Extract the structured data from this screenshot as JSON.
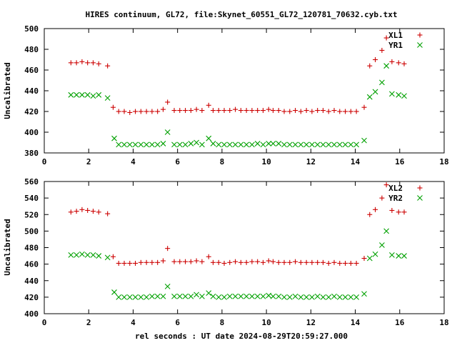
{
  "figure": {
    "title": "HIRES continuum, GL72, file:Skynet_60551_GL72_120781_70632.cyb.txt",
    "xlabel": "rel seconds : UT date 2024-08-29T20:59:27.000"
  },
  "colors": {
    "red_series": "#cc0000",
    "green_series": "#00a000"
  },
  "chart_data": [
    {
      "type": "scatter",
      "ylabel": "Uncalibrated",
      "xlim": [
        0,
        18
      ],
      "ylim": [
        380,
        500
      ],
      "xticks": [
        0,
        2,
        4,
        6,
        8,
        10,
        12,
        14,
        16,
        18
      ],
      "yticks": [
        380,
        400,
        420,
        440,
        460,
        480,
        500
      ],
      "legend_position": "top-right",
      "series": [
        {
          "name": "XL1",
          "marker": "plus",
          "color": "#cc0000",
          "points": [
            [
              1.2,
              467
            ],
            [
              1.45,
              467
            ],
            [
              1.7,
              468
            ],
            [
              1.95,
              467
            ],
            [
              2.2,
              467
            ],
            [
              2.45,
              466
            ],
            [
              2.85,
              464
            ],
            [
              3.1,
              424
            ],
            [
              3.35,
              420
            ],
            [
              3.6,
              420
            ],
            [
              3.85,
              419
            ],
            [
              4.1,
              420
            ],
            [
              4.35,
              420
            ],
            [
              4.6,
              420
            ],
            [
              4.85,
              420
            ],
            [
              5.1,
              420
            ],
            [
              5.35,
              422
            ],
            [
              5.55,
              429
            ],
            [
              5.85,
              421
            ],
            [
              6.1,
              421
            ],
            [
              6.35,
              421
            ],
            [
              6.6,
              421
            ],
            [
              6.85,
              422
            ],
            [
              7.1,
              421
            ],
            [
              7.4,
              426
            ],
            [
              7.6,
              421
            ],
            [
              7.85,
              421
            ],
            [
              8.1,
              421
            ],
            [
              8.35,
              421
            ],
            [
              8.6,
              422
            ],
            [
              8.85,
              421
            ],
            [
              9.1,
              421
            ],
            [
              9.35,
              421
            ],
            [
              9.6,
              421
            ],
            [
              9.85,
              421
            ],
            [
              10.1,
              422
            ],
            [
              10.3,
              421
            ],
            [
              10.55,
              421
            ],
            [
              10.8,
              420
            ],
            [
              11.05,
              420
            ],
            [
              11.3,
              421
            ],
            [
              11.55,
              420
            ],
            [
              11.8,
              421
            ],
            [
              12.05,
              420
            ],
            [
              12.3,
              421
            ],
            [
              12.55,
              421
            ],
            [
              12.8,
              420
            ],
            [
              13.05,
              421
            ],
            [
              13.3,
              420
            ],
            [
              13.55,
              420
            ],
            [
              13.8,
              420
            ],
            [
              14.05,
              420
            ],
            [
              14.4,
              424
            ],
            [
              14.65,
              464
            ],
            [
              14.9,
              470
            ],
            [
              15.2,
              479
            ],
            [
              15.4,
              491
            ],
            [
              15.65,
              468
            ],
            [
              15.95,
              467
            ],
            [
              16.2,
              466
            ]
          ]
        },
        {
          "name": "YR1",
          "marker": "cross",
          "color": "#00a000",
          "points": [
            [
              1.2,
              436
            ],
            [
              1.45,
              436
            ],
            [
              1.7,
              436
            ],
            [
              1.95,
              436
            ],
            [
              2.2,
              435
            ],
            [
              2.45,
              436
            ],
            [
              2.85,
              433
            ],
            [
              3.15,
              394
            ],
            [
              3.35,
              388
            ],
            [
              3.6,
              388
            ],
            [
              3.85,
              388
            ],
            [
              4.1,
              388
            ],
            [
              4.35,
              388
            ],
            [
              4.6,
              388
            ],
            [
              4.85,
              388
            ],
            [
              5.1,
              388
            ],
            [
              5.35,
              389
            ],
            [
              5.55,
              400
            ],
            [
              5.85,
              388
            ],
            [
              6.1,
              388
            ],
            [
              6.35,
              388
            ],
            [
              6.6,
              389
            ],
            [
              6.85,
              390
            ],
            [
              7.1,
              388
            ],
            [
              7.4,
              394
            ],
            [
              7.6,
              389
            ],
            [
              7.85,
              388
            ],
            [
              8.1,
              388
            ],
            [
              8.35,
              388
            ],
            [
              8.6,
              388
            ],
            [
              8.85,
              388
            ],
            [
              9.1,
              388
            ],
            [
              9.35,
              388
            ],
            [
              9.6,
              389
            ],
            [
              9.85,
              388
            ],
            [
              10.1,
              389
            ],
            [
              10.3,
              389
            ],
            [
              10.55,
              389
            ],
            [
              10.8,
              388
            ],
            [
              11.05,
              388
            ],
            [
              11.3,
              388
            ],
            [
              11.55,
              388
            ],
            [
              11.8,
              388
            ],
            [
              12.05,
              388
            ],
            [
              12.3,
              388
            ],
            [
              12.55,
              388
            ],
            [
              12.8,
              388
            ],
            [
              13.05,
              388
            ],
            [
              13.3,
              388
            ],
            [
              13.55,
              388
            ],
            [
              13.8,
              388
            ],
            [
              14.05,
              388
            ],
            [
              14.4,
              392
            ],
            [
              14.65,
              434
            ],
            [
              14.9,
              439
            ],
            [
              15.2,
              448
            ],
            [
              15.4,
              464
            ],
            [
              15.65,
              437
            ],
            [
              15.95,
              436
            ],
            [
              16.2,
              435
            ]
          ]
        }
      ]
    },
    {
      "type": "scatter",
      "ylabel": "Uncalibrated",
      "xlim": [
        0,
        18
      ],
      "ylim": [
        400,
        560
      ],
      "xticks": [
        0,
        2,
        4,
        6,
        8,
        10,
        12,
        14,
        16,
        18
      ],
      "yticks": [
        400,
        420,
        440,
        460,
        480,
        500,
        520,
        540,
        560
      ],
      "legend_position": "top-right",
      "series": [
        {
          "name": "XL2",
          "marker": "plus",
          "color": "#cc0000",
          "points": [
            [
              1.2,
              523
            ],
            [
              1.45,
              524
            ],
            [
              1.7,
              526
            ],
            [
              1.95,
              525
            ],
            [
              2.2,
              524
            ],
            [
              2.45,
              523
            ],
            [
              2.85,
              521
            ],
            [
              3.1,
              469
            ],
            [
              3.35,
              461
            ],
            [
              3.6,
              461
            ],
            [
              3.85,
              461
            ],
            [
              4.1,
              461
            ],
            [
              4.35,
              462
            ],
            [
              4.6,
              462
            ],
            [
              4.85,
              462
            ],
            [
              5.1,
              462
            ],
            [
              5.35,
              464
            ],
            [
              5.55,
              479
            ],
            [
              5.85,
              463
            ],
            [
              6.1,
              463
            ],
            [
              6.35,
              463
            ],
            [
              6.6,
              463
            ],
            [
              6.85,
              464
            ],
            [
              7.1,
              463
            ],
            [
              7.4,
              469
            ],
            [
              7.6,
              462
            ],
            [
              7.85,
              462
            ],
            [
              8.1,
              461
            ],
            [
              8.35,
              462
            ],
            [
              8.6,
              463
            ],
            [
              8.85,
              462
            ],
            [
              9.1,
              462
            ],
            [
              9.35,
              463
            ],
            [
              9.6,
              463
            ],
            [
              9.85,
              462
            ],
            [
              10.1,
              464
            ],
            [
              10.3,
              463
            ],
            [
              10.55,
              462
            ],
            [
              10.8,
              462
            ],
            [
              11.05,
              462
            ],
            [
              11.3,
              463
            ],
            [
              11.55,
              462
            ],
            [
              11.8,
              462
            ],
            [
              12.05,
              462
            ],
            [
              12.3,
              462
            ],
            [
              12.55,
              462
            ],
            [
              12.8,
              461
            ],
            [
              13.05,
              462
            ],
            [
              13.3,
              461
            ],
            [
              13.55,
              461
            ],
            [
              13.8,
              461
            ],
            [
              14.05,
              461
            ],
            [
              14.4,
              467
            ],
            [
              14.65,
              520
            ],
            [
              14.9,
              526
            ],
            [
              15.2,
              540
            ],
            [
              15.4,
              556
            ],
            [
              15.65,
              525
            ],
            [
              15.95,
              523
            ],
            [
              16.2,
              523
            ]
          ]
        },
        {
          "name": "YR2",
          "marker": "cross",
          "color": "#00a000",
          "points": [
            [
              1.2,
              471
            ],
            [
              1.45,
              471
            ],
            [
              1.7,
              472
            ],
            [
              1.95,
              471
            ],
            [
              2.2,
              471
            ],
            [
              2.45,
              470
            ],
            [
              2.85,
              468
            ],
            [
              3.15,
              426
            ],
            [
              3.35,
              420
            ],
            [
              3.6,
              420
            ],
            [
              3.85,
              420
            ],
            [
              4.1,
              420
            ],
            [
              4.35,
              420
            ],
            [
              4.6,
              420
            ],
            [
              4.85,
              421
            ],
            [
              5.1,
              421
            ],
            [
              5.35,
              421
            ],
            [
              5.55,
              433
            ],
            [
              5.85,
              421
            ],
            [
              6.1,
              421
            ],
            [
              6.35,
              421
            ],
            [
              6.6,
              421
            ],
            [
              6.85,
              423
            ],
            [
              7.1,
              421
            ],
            [
              7.4,
              425
            ],
            [
              7.6,
              421
            ],
            [
              7.85,
              420
            ],
            [
              8.1,
              420
            ],
            [
              8.35,
              421
            ],
            [
              8.6,
              421
            ],
            [
              8.85,
              421
            ],
            [
              9.1,
              421
            ],
            [
              9.35,
              421
            ],
            [
              9.6,
              421
            ],
            [
              9.85,
              421
            ],
            [
              10.1,
              422
            ],
            [
              10.3,
              421
            ],
            [
              10.55,
              421
            ],
            [
              10.8,
              420
            ],
            [
              11.05,
              420
            ],
            [
              11.3,
              421
            ],
            [
              11.55,
              420
            ],
            [
              11.8,
              420
            ],
            [
              12.05,
              420
            ],
            [
              12.3,
              421
            ],
            [
              12.55,
              420
            ],
            [
              12.8,
              420
            ],
            [
              13.05,
              421
            ],
            [
              13.3,
              420
            ],
            [
              13.55,
              420
            ],
            [
              13.8,
              420
            ],
            [
              14.05,
              420
            ],
            [
              14.4,
              424
            ],
            [
              14.65,
              467
            ],
            [
              14.9,
              472
            ],
            [
              15.2,
              483
            ],
            [
              15.4,
              500
            ],
            [
              15.65,
              471
            ],
            [
              15.95,
              470
            ],
            [
              16.2,
              470
            ]
          ]
        }
      ]
    }
  ]
}
